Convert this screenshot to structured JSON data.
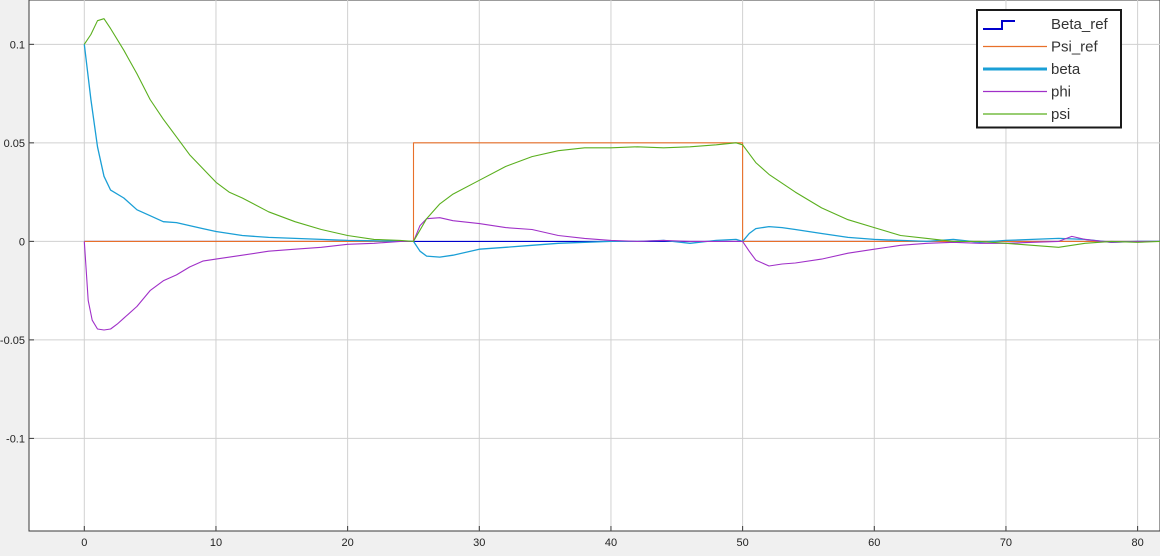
{
  "chart_data": {
    "type": "line",
    "title": "",
    "xlabel": "",
    "ylabel": "",
    "xlim": [
      -4.2,
      81.7
    ],
    "ylim": [
      -0.147,
      0.1225
    ],
    "xticks": [
      0,
      10,
      20,
      30,
      40,
      50,
      60,
      70,
      80
    ],
    "xtick_labels": [
      "0",
      "10",
      "20",
      "30",
      "40",
      "50",
      "60",
      "70",
      "80"
    ],
    "yticks": [
      -0.1,
      -0.05,
      0,
      0.05,
      0.1
    ],
    "ytick_labels": [
      "-0.1",
      "-0.05",
      "0",
      "0.05",
      "0.1"
    ],
    "grid": true,
    "legend_position": "top-right",
    "background_color": "#ffffff",
    "series": [
      {
        "name": "Beta_ref",
        "color": "#0000cc",
        "legend_style": "step",
        "x": [
          0,
          81.7
        ],
        "y": [
          0,
          0
        ]
      },
      {
        "name": "Psi_ref",
        "color": "#e8702a",
        "legend_style": "thin",
        "x": [
          0,
          25,
          25,
          50,
          50,
          81.7
        ],
        "y": [
          0,
          0,
          0.05,
          0.05,
          0,
          0
        ]
      },
      {
        "name": "beta",
        "color": "#1a9fd6",
        "legend_style": "thick",
        "x": [
          0,
          0.5,
          1,
          1.5,
          2,
          3,
          4,
          5,
          6,
          7,
          8,
          9,
          10,
          12,
          14,
          16,
          18,
          20,
          22,
          24,
          25,
          25.5,
          26,
          27,
          28,
          30,
          32,
          34,
          36,
          38,
          40,
          42,
          44,
          46,
          48,
          49.5,
          50,
          50.5,
          51,
          52,
          53,
          54,
          56,
          58,
          60,
          62,
          64,
          66,
          68,
          70,
          72,
          74,
          76,
          78,
          80,
          81.7
        ],
        "y": [
          0.1,
          0.072,
          0.048,
          0.033,
          0.026,
          0.022,
          0.016,
          0.013,
          0.01,
          0.0095,
          0.008,
          0.0065,
          0.005,
          0.003,
          0.002,
          0.0015,
          0.001,
          0.0005,
          0.0003,
          0.0,
          0.0,
          -0.005,
          -0.0075,
          -0.008,
          -0.007,
          -0.004,
          -0.003,
          -0.002,
          -0.001,
          -0.0005,
          0.0,
          0.0,
          0.0005,
          -0.001,
          0.0005,
          0.001,
          0.0,
          0.004,
          0.0065,
          0.0075,
          0.007,
          0.006,
          0.004,
          0.002,
          0.001,
          0.0005,
          0.0,
          0.001,
          -0.0005,
          0.0005,
          0.001,
          0.0015,
          0.001,
          -0.0005,
          0.0,
          0.0
        ]
      },
      {
        "name": "phi",
        "color": "#a030c8",
        "legend_style": "thin",
        "x": [
          0,
          0.3,
          0.6,
          1,
          1.5,
          2,
          2.5,
          3,
          4,
          5,
          6,
          7,
          8,
          9,
          10,
          12,
          14,
          16,
          18,
          20,
          22,
          24,
          25,
          25.5,
          26,
          27,
          28,
          30,
          32,
          34,
          36,
          38,
          40,
          42,
          44,
          46,
          48,
          50,
          50.5,
          51,
          52,
          53,
          54,
          56,
          58,
          60,
          62,
          64,
          66,
          68,
          70,
          72,
          74,
          75,
          76,
          78,
          80,
          81.7
        ],
        "y": [
          0,
          -0.03,
          -0.04,
          -0.0445,
          -0.045,
          -0.0445,
          -0.042,
          -0.039,
          -0.033,
          -0.025,
          -0.02,
          -0.017,
          -0.013,
          -0.01,
          -0.009,
          -0.007,
          -0.005,
          -0.004,
          -0.003,
          -0.0015,
          -0.001,
          0.0,
          0.0,
          0.008,
          0.0115,
          0.012,
          0.0105,
          0.009,
          0.007,
          0.006,
          0.003,
          0.0015,
          0.0005,
          0.0,
          0.0005,
          0.0,
          0.0,
          0.0,
          -0.005,
          -0.0095,
          -0.0125,
          -0.0115,
          -0.011,
          -0.009,
          -0.006,
          -0.004,
          -0.002,
          -0.001,
          -0.0005,
          -0.001,
          -0.001,
          -0.0005,
          0.0,
          0.0025,
          0.001,
          -0.0005,
          0.0,
          0.0
        ]
      },
      {
        "name": "psi",
        "color": "#5aaf1e",
        "legend_style": "thin",
        "x": [
          0,
          0.5,
          1,
          1.5,
          2,
          3,
          4,
          5,
          6,
          7,
          8,
          9,
          10,
          11,
          12,
          14,
          16,
          18,
          20,
          22,
          24,
          25,
          26,
          27,
          28,
          30,
          32,
          34,
          36,
          38,
          40,
          42,
          44,
          46,
          48,
          49.5,
          50,
          51,
          52,
          54,
          56,
          58,
          60,
          62,
          64,
          66,
          68,
          70,
          72,
          74,
          76,
          78,
          80,
          81.7
        ],
        "y": [
          0.1,
          0.105,
          0.112,
          0.113,
          0.108,
          0.097,
          0.085,
          0.072,
          0.062,
          0.053,
          0.044,
          0.037,
          0.03,
          0.025,
          0.022,
          0.015,
          0.01,
          0.006,
          0.003,
          0.001,
          0.0005,
          0.0,
          0.0115,
          0.019,
          0.024,
          0.031,
          0.038,
          0.043,
          0.046,
          0.0475,
          0.0475,
          0.048,
          0.0475,
          0.048,
          0.049,
          0.05,
          0.049,
          0.04,
          0.034,
          0.025,
          0.017,
          0.011,
          0.007,
          0.003,
          0.0015,
          0.0,
          0.0,
          -0.001,
          -0.002,
          -0.003,
          -0.001,
          0.0,
          -0.0005,
          0.0
        ]
      }
    ]
  }
}
